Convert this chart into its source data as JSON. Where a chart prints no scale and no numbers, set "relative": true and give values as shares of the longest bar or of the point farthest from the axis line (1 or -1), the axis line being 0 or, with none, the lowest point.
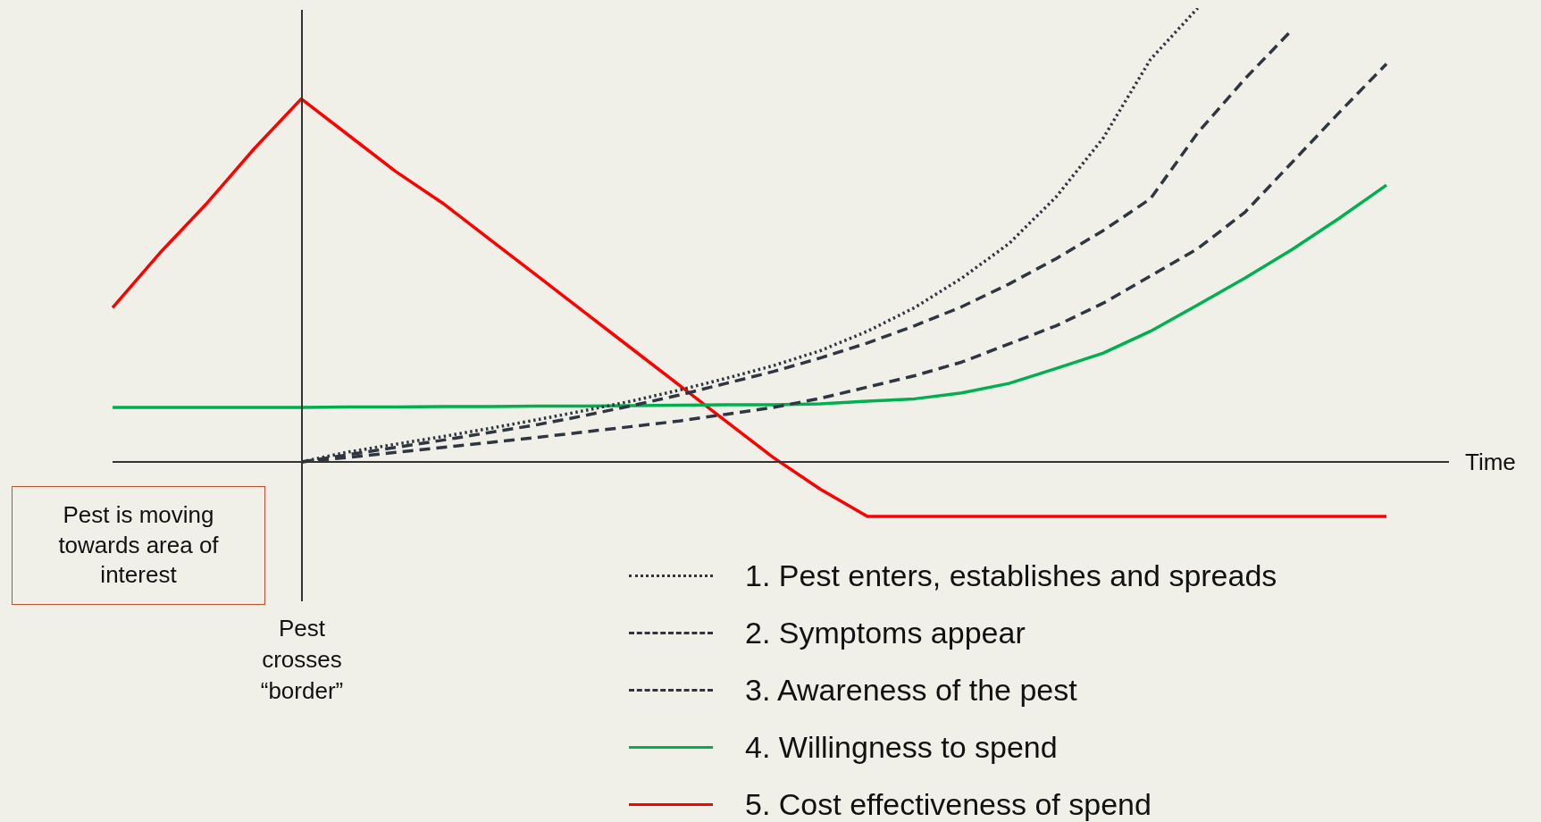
{
  "chart_data": {
    "type": "line",
    "relative": true,
    "xlabel": "Time",
    "legend": "bottom right",
    "marker": "none",
    "categories": [
      null,
      null,
      null,
      null,
      null,
      null,
      null,
      null,
      null,
      null,
      null,
      null,
      null,
      null,
      null,
      null,
      null,
      null,
      null,
      null,
      null,
      null,
      null,
      null,
      null,
      null,
      null,
      null
    ],
    "series": [
      {
        "name": "1. Pest enters, establishes and spreads",
        "color": "#2f3541",
        "line_style": "dotted",
        "values": [
          null,
          null,
          null,
          null,
          0,
          0.022,
          0.039,
          0.056,
          0.074,
          0.093,
          0.113,
          0.134,
          0.158,
          0.184,
          0.212,
          0.245,
          0.288,
          0.34,
          0.405,
          0.481,
          0.584,
          0.714,
          0.887,
          1,
          null,
          null,
          null,
          null
        ]
      },
      {
        "name": "2. Symptoms appear",
        "color": "#2f3541",
        "line_style": "dashed",
        "values": [
          null,
          null,
          null,
          null,
          0,
          0.016,
          0.032,
          0.048,
          0.065,
          0.082,
          0.102,
          0.124,
          0.147,
          0.173,
          0.199,
          0.229,
          0.262,
          0.3,
          0.342,
          0.392,
          0.448,
          0.51,
          0.58,
          0.725,
          0.844,
          0.952,
          null,
          null
        ]
      },
      {
        "name": "3. Awareness of the pest",
        "color": "#2f3541",
        "line_style": "dashed",
        "values": [
          null,
          null,
          null,
          null,
          0,
          0.01,
          0.021,
          0.032,
          0.043,
          0.054,
          0.066,
          0.078,
          0.09,
          0.105,
          0.12,
          0.14,
          0.165,
          0.19,
          0.22,
          0.26,
          0.3,
          0.35,
          0.41,
          0.47,
          0.55,
          0.66,
          0.77,
          0.877
        ]
      },
      {
        "name": "4. Willingness to spend",
        "color": "#00b050",
        "line_style": "solid",
        "values": [
          0.12,
          0.12,
          0.12,
          0.12,
          0.12,
          0.121,
          0.121,
          0.122,
          0.122,
          0.123,
          0.123,
          0.124,
          0.125,
          0.126,
          0.126,
          0.128,
          0.134,
          0.139,
          0.152,
          0.173,
          0.206,
          0.24,
          0.288,
          0.346,
          0.405,
          0.468,
          0.537,
          0.61
        ]
      },
      {
        "name": "5. Cost effectiveness of spend",
        "color": "#ff0000",
        "line_style": "solid",
        "values": [
          0.34,
          0.46,
          0.57,
          0.69,
          0.8,
          0.72,
          0.64,
          0.57,
          0.49,
          0.41,
          0.33,
          0.25,
          0.17,
          0.09,
          0.01,
          -0.06,
          -0.12,
          -0.12,
          -0.12,
          -0.12,
          -0.12,
          -0.12,
          -0.12,
          -0.12,
          -0.12,
          -0.12,
          -0.12,
          -0.12
        ]
      }
    ],
    "annotations": [
      "Pest is moving towards area of interest",
      "Pest crosses “border”"
    ]
  }
}
